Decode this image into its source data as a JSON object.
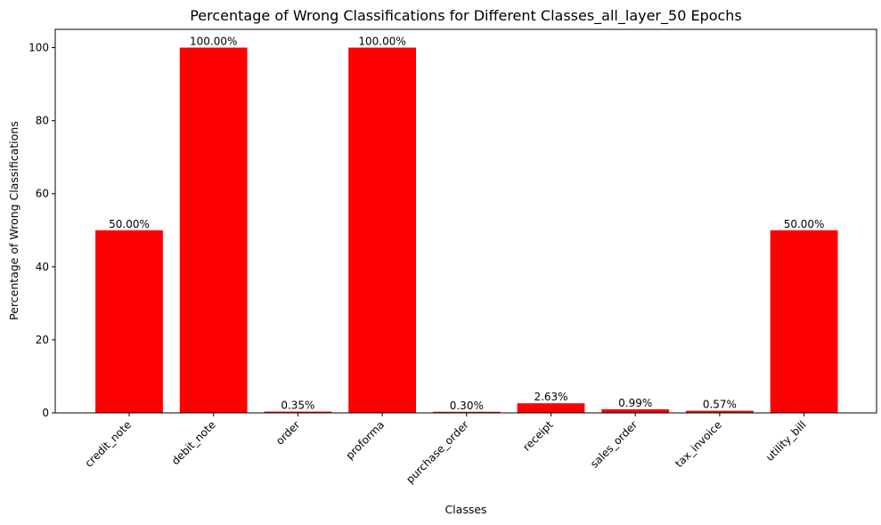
{
  "chart_data": {
    "type": "bar",
    "title": "Percentage of Wrong Classifications for Different Classes_all_layer_50 Epochs",
    "xlabel": "Classes",
    "ylabel": "Percentage of Wrong Classifications",
    "categories": [
      "credit_note",
      "debit_note",
      "order",
      "proforma",
      "purchase_order",
      "receipt",
      "sales_order",
      "tax_invoice",
      "utility_bill"
    ],
    "values": [
      50.0,
      100.0,
      0.35,
      100.0,
      0.3,
      2.63,
      0.99,
      0.57,
      50.0
    ],
    "data_labels": [
      "50.00%",
      "100.00%",
      "0.35%",
      "100.00%",
      "0.30%",
      "2.63%",
      "0.99%",
      "0.57%",
      "50.00%"
    ],
    "y_ticks": [
      0,
      20,
      40,
      60,
      80,
      100
    ],
    "ylim": [
      0,
      105
    ],
    "bar_color": "#ff0000",
    "grid": false,
    "legend": false
  }
}
